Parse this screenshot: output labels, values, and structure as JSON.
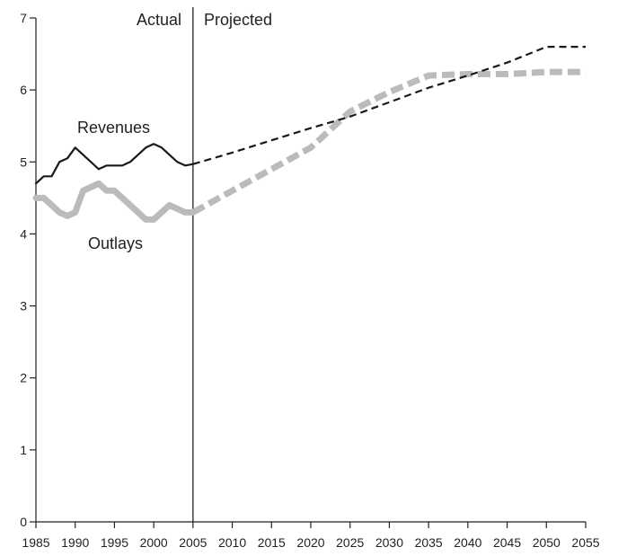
{
  "chart_data": {
    "type": "line",
    "title": "",
    "xlabel": "",
    "ylabel": "",
    "xlim": [
      1985,
      2055
    ],
    "ylim": [
      0,
      7
    ],
    "x_ticks": [
      1985,
      1990,
      1995,
      2000,
      2005,
      2010,
      2015,
      2020,
      2025,
      2030,
      2035,
      2040,
      2045,
      2050,
      2055
    ],
    "y_ticks": [
      0,
      1,
      2,
      3,
      4,
      5,
      6,
      7
    ],
    "grid": false,
    "divider": {
      "x": 2005,
      "left_label": "Actual",
      "right_label": "Projected"
    },
    "series": [
      {
        "name": "Revenues",
        "color": "#1a1a1a",
        "actual": {
          "x": [
            1985,
            1986,
            1987,
            1988,
            1989,
            1990,
            1991,
            1992,
            1993,
            1994,
            1995,
            1996,
            1997,
            1998,
            1999,
            2000,
            2001,
            2002,
            2003,
            2004,
            2005
          ],
          "y": [
            4.7,
            4.8,
            4.8,
            5.0,
            5.05,
            5.2,
            5.1,
            5.0,
            4.9,
            4.95,
            4.95,
            4.95,
            5.0,
            5.1,
            5.2,
            5.25,
            5.2,
            5.1,
            5.0,
            4.95,
            4.97
          ]
        },
        "projected": {
          "x": [
            2005,
            2010,
            2015,
            2020,
            2025,
            2030,
            2035,
            2040,
            2045,
            2050,
            2055
          ],
          "y": [
            4.97,
            5.13,
            5.3,
            5.47,
            5.63,
            5.83,
            6.03,
            6.2,
            6.38,
            6.6,
            6.6
          ]
        }
      },
      {
        "name": "Outlays",
        "color": "#bbbbbb",
        "actual": {
          "x": [
            1985,
            1986,
            1987,
            1988,
            1989,
            1990,
            1991,
            1992,
            1993,
            1994,
            1995,
            1996,
            1997,
            1998,
            1999,
            2000,
            2001,
            2002,
            2003,
            2004,
            2005
          ],
          "y": [
            4.5,
            4.5,
            4.4,
            4.3,
            4.25,
            4.3,
            4.6,
            4.65,
            4.7,
            4.6,
            4.6,
            4.5,
            4.4,
            4.3,
            4.2,
            4.2,
            4.3,
            4.4,
            4.35,
            4.3,
            4.3
          ]
        },
        "projected": {
          "x": [
            2005,
            2010,
            2015,
            2020,
            2025,
            2030,
            2035,
            2040,
            2045,
            2050,
            2055
          ],
          "y": [
            4.3,
            4.6,
            4.9,
            5.2,
            5.7,
            5.97,
            6.2,
            6.22,
            6.22,
            6.25,
            6.25
          ]
        }
      }
    ]
  }
}
